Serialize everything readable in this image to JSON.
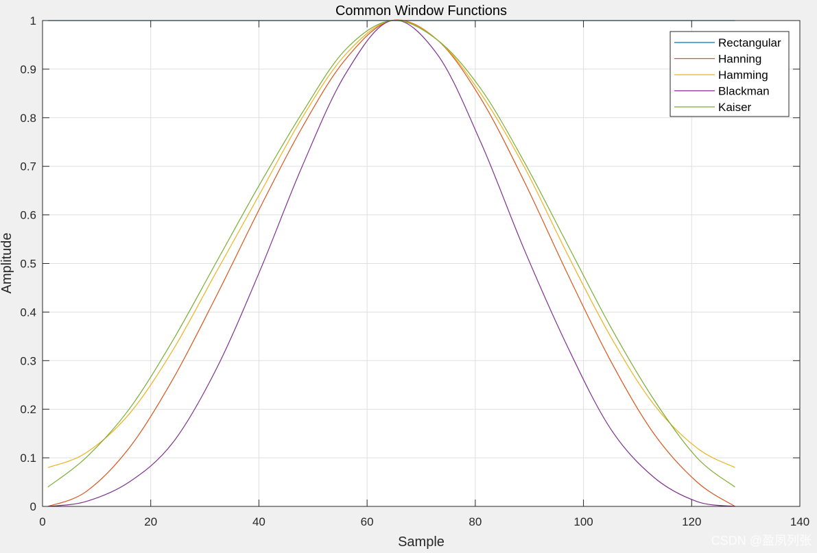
{
  "chart_data": {
    "type": "line",
    "title": "Common Window Functions",
    "xlabel": "Sample",
    "ylabel": "Amplitude",
    "xlim": [
      0,
      140
    ],
    "ylim": [
      0,
      1
    ],
    "xticks": [
      0,
      20,
      40,
      60,
      80,
      100,
      120,
      140
    ],
    "yticks": [
      0,
      0.1,
      0.2,
      0.3,
      0.4,
      0.5,
      0.6,
      0.7,
      0.8,
      0.9,
      1
    ],
    "xtick_labels": [
      "0",
      "20",
      "40",
      "60",
      "80",
      "100",
      "120",
      "140"
    ],
    "ytick_labels": [
      "0",
      "0.1",
      "0.2",
      "0.3",
      "0.4",
      "0.5",
      "0.6",
      "0.7",
      "0.8",
      "0.9",
      "1"
    ],
    "grid": true,
    "legend_position": "top-right",
    "x": [
      1,
      8,
      16,
      24,
      32,
      40,
      48,
      56,
      64.5,
      73,
      81,
      89,
      97,
      105,
      113,
      121,
      128
    ],
    "series": [
      {
        "name": "Rectangular",
        "color": "#0072bd",
        "values": [
          1,
          1,
          1,
          1,
          1,
          1,
          1,
          1,
          1,
          1,
          1,
          1,
          1,
          1,
          1,
          1,
          1
        ]
      },
      {
        "name": "Hanning",
        "color": "#d95319",
        "values": [
          0,
          0.03,
          0.12,
          0.26,
          0.43,
          0.61,
          0.78,
          0.92,
          1,
          0.96,
          0.84,
          0.67,
          0.48,
          0.3,
          0.15,
          0.05,
          0
        ]
      },
      {
        "name": "Hamming",
        "color": "#edb120",
        "values": [
          0.08,
          0.11,
          0.19,
          0.32,
          0.48,
          0.64,
          0.8,
          0.93,
          1,
          0.96,
          0.85,
          0.7,
          0.52,
          0.35,
          0.21,
          0.12,
          0.08
        ]
      },
      {
        "name": "Blackman",
        "color": "#7e2f8e",
        "values": [
          0,
          0.01,
          0.05,
          0.13,
          0.28,
          0.48,
          0.7,
          0.89,
          1,
          0.93,
          0.75,
          0.53,
          0.33,
          0.16,
          0.06,
          0.01,
          0
        ]
      },
      {
        "name": "Kaiser",
        "color": "#77ac30",
        "values": [
          0.04,
          0.1,
          0.2,
          0.34,
          0.5,
          0.66,
          0.81,
          0.94,
          1,
          0.96,
          0.86,
          0.71,
          0.54,
          0.37,
          0.22,
          0.1,
          0.04
        ]
      }
    ]
  },
  "watermark": "CSDN @盈夙列张"
}
